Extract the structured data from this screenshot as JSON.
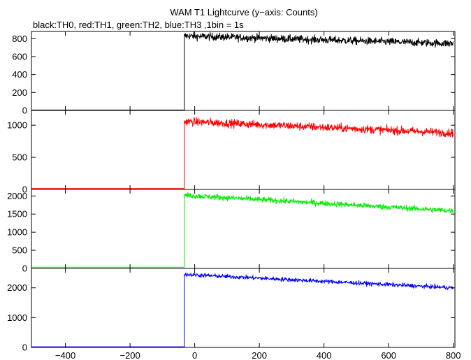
{
  "chart_data": {
    "type": "line",
    "title": "WAM T1 Lightcurve (y−axis: Counts)",
    "subtitle": "black:TH0, red:TH1, green:TH2, blue:TH3 ,1bin = 1s",
    "xlabel": "",
    "xlim": [
      -505,
      805
    ],
    "x_ticks": [
      -400,
      -200,
      0,
      200,
      400,
      600,
      800
    ],
    "x_tick_labels": [
      "−400",
      "−200",
      "0",
      "200",
      "400",
      "600",
      "800"
    ],
    "trigger_time": -32,
    "grid": false,
    "panels": [
      {
        "series": "TH0",
        "color": "#000000",
        "ylim": [
          0,
          880
        ],
        "y_ticks": [
          0,
          200,
          400,
          600,
          800
        ],
        "y_tick_labels": [
          "0",
          "200",
          "400",
          "600",
          "800"
        ],
        "baseline": 5,
        "start_level": 830,
        "end_level": 745,
        "noise": 30
      },
      {
        "series": "TH1",
        "color": "#ff0000",
        "ylim": [
          0,
          1230
        ],
        "y_ticks": [
          0,
          500,
          1000
        ],
        "y_tick_labels": [
          "0",
          "500",
          "1000"
        ],
        "baseline": 15,
        "start_level": 1060,
        "end_level": 880,
        "noise": 45
      },
      {
        "series": "TH2",
        "color": "#00ee00",
        "ylim": [
          0,
          2180
        ],
        "y_ticks": [
          0,
          500,
          1000,
          1500,
          2000
        ],
        "y_tick_labels": [
          "0",
          "500",
          "1000",
          "1500",
          "2000"
        ],
        "baseline": 35,
        "start_level": 2020,
        "end_level": 1590,
        "noise": 55
      },
      {
        "series": "TH3",
        "color": "#0000ff",
        "ylim": [
          0,
          2650
        ],
        "y_ticks": [
          0,
          1000,
          2000
        ],
        "y_tick_labels": [
          "0",
          "1000",
          "2000"
        ],
        "baseline": 20,
        "start_level": 2450,
        "end_level": 2000,
        "noise": 50
      }
    ]
  }
}
